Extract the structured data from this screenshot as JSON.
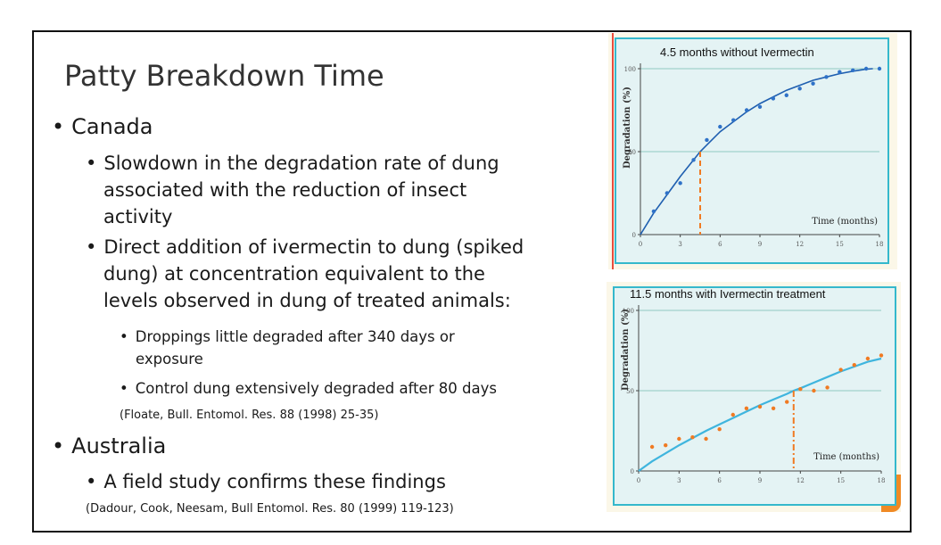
{
  "slide": {
    "title": "Patty Breakdown Time",
    "bullets": {
      "canada": "Canada",
      "canada_sub1": [
        "Slowdown in the degradation rate of dung",
        "associated with the reduction of insect",
        "activity"
      ],
      "canada_sub2": [
        "Direct addition of ivermectin to dung (spiked",
        "dung) at concentration equivalent to the",
        "levels observed in dung of treated animals:"
      ],
      "canada_sub2a": [
        "Droppings little degraded after 340 days or",
        "exposure"
      ],
      "canada_sub2b": "Control dung extensively degraded after 80 days",
      "citation1": "(Floate, Bull. Entomol. Res. 88 (1998) 25-35)",
      "australia": "Australia",
      "australia_sub1": "A field study confirms these findings",
      "citation2": "(Dadour, Cook, Neesam, Bull Entomol. Res. 80 (1999) 119-123)"
    },
    "bullet_char": "•"
  },
  "colors": {
    "frame": "#111111",
    "chart_bg": "#e4f3f4",
    "chart_border": "#35b8cc",
    "gridline": "#8fc9c2",
    "curve1": "#1f5fb0",
    "dots1": "#2f72c8",
    "curve2": "#3fb5de",
    "dots2": "#f07a22",
    "marker": "#f07a22",
    "accent_tab": "#f08a24",
    "red_rule": "#e84c3d"
  },
  "chart_data": [
    {
      "type": "scatter",
      "title": "4.5 months without Ivermectin",
      "xlabel": "Time (months)",
      "ylabel": "Degradation (%)",
      "xlim": [
        0,
        18
      ],
      "ylim": [
        0,
        100
      ],
      "xticks": [
        0,
        3,
        6,
        9,
        12,
        15,
        18
      ],
      "yticks": [
        0,
        50,
        100
      ],
      "grid": "horizontal at 50 and 100",
      "series": [
        {
          "name": "observed",
          "style": "points",
          "x": [
            1,
            2,
            3,
            4,
            5,
            6,
            7,
            8,
            9,
            10,
            11,
            12,
            13,
            14,
            15,
            16,
            17,
            18
          ],
          "y": [
            14,
            25,
            31,
            45,
            57,
            65,
            69,
            75,
            77,
            82,
            84,
            88,
            91,
            95,
            98,
            99,
            100,
            100
          ]
        },
        {
          "name": "fitted",
          "style": "line",
          "x": [
            0,
            1,
            2,
            3,
            4,
            4.5,
            5,
            6,
            7,
            8,
            9,
            10,
            11,
            12,
            13,
            14,
            15,
            16,
            17,
            17.5
          ],
          "y": [
            0,
            13,
            24,
            35,
            45,
            50,
            54,
            62,
            68,
            74,
            79,
            83,
            87,
            90,
            93,
            95,
            97,
            98.5,
            99.7,
            100
          ]
        }
      ],
      "marker": {
        "x": 4.5,
        "y": 50,
        "style": "dashed vertical"
      }
    },
    {
      "type": "scatter",
      "title": "11.5 months with Ivermectin treatment",
      "xlabel": "Time (months)",
      "ylabel": "Degradation (%)",
      "xlim": [
        0,
        18
      ],
      "ylim": [
        0,
        100
      ],
      "xticks": [
        0,
        3,
        6,
        9,
        12,
        15,
        18
      ],
      "yticks": [
        0,
        50,
        100
      ],
      "grid": "horizontal at 50 and 100",
      "series": [
        {
          "name": "observed",
          "style": "points",
          "x": [
            1,
            2,
            3,
            4,
            5,
            6,
            7,
            8,
            9,
            10,
            11,
            12,
            13,
            14,
            15,
            16,
            17,
            18
          ],
          "y": [
            15,
            16,
            20,
            21,
            20,
            26,
            35,
            39,
            40,
            39,
            43,
            51,
            50,
            52,
            63,
            66,
            70,
            72
          ]
        },
        {
          "name": "fitted",
          "style": "line",
          "x": [
            0,
            1,
            2,
            3,
            4,
            5,
            6,
            7,
            8,
            9,
            10,
            11,
            11.5,
            12,
            13,
            14,
            15,
            16,
            17,
            18
          ],
          "y": [
            0,
            6,
            11,
            16,
            20.5,
            25,
            29,
            33,
            37,
            41,
            44.5,
            48,
            50,
            51.5,
            55,
            58.5,
            62,
            65,
            68,
            70
          ]
        }
      ],
      "marker": {
        "x": 11.5,
        "y": 50,
        "style": "dash-dot vertical"
      }
    }
  ]
}
